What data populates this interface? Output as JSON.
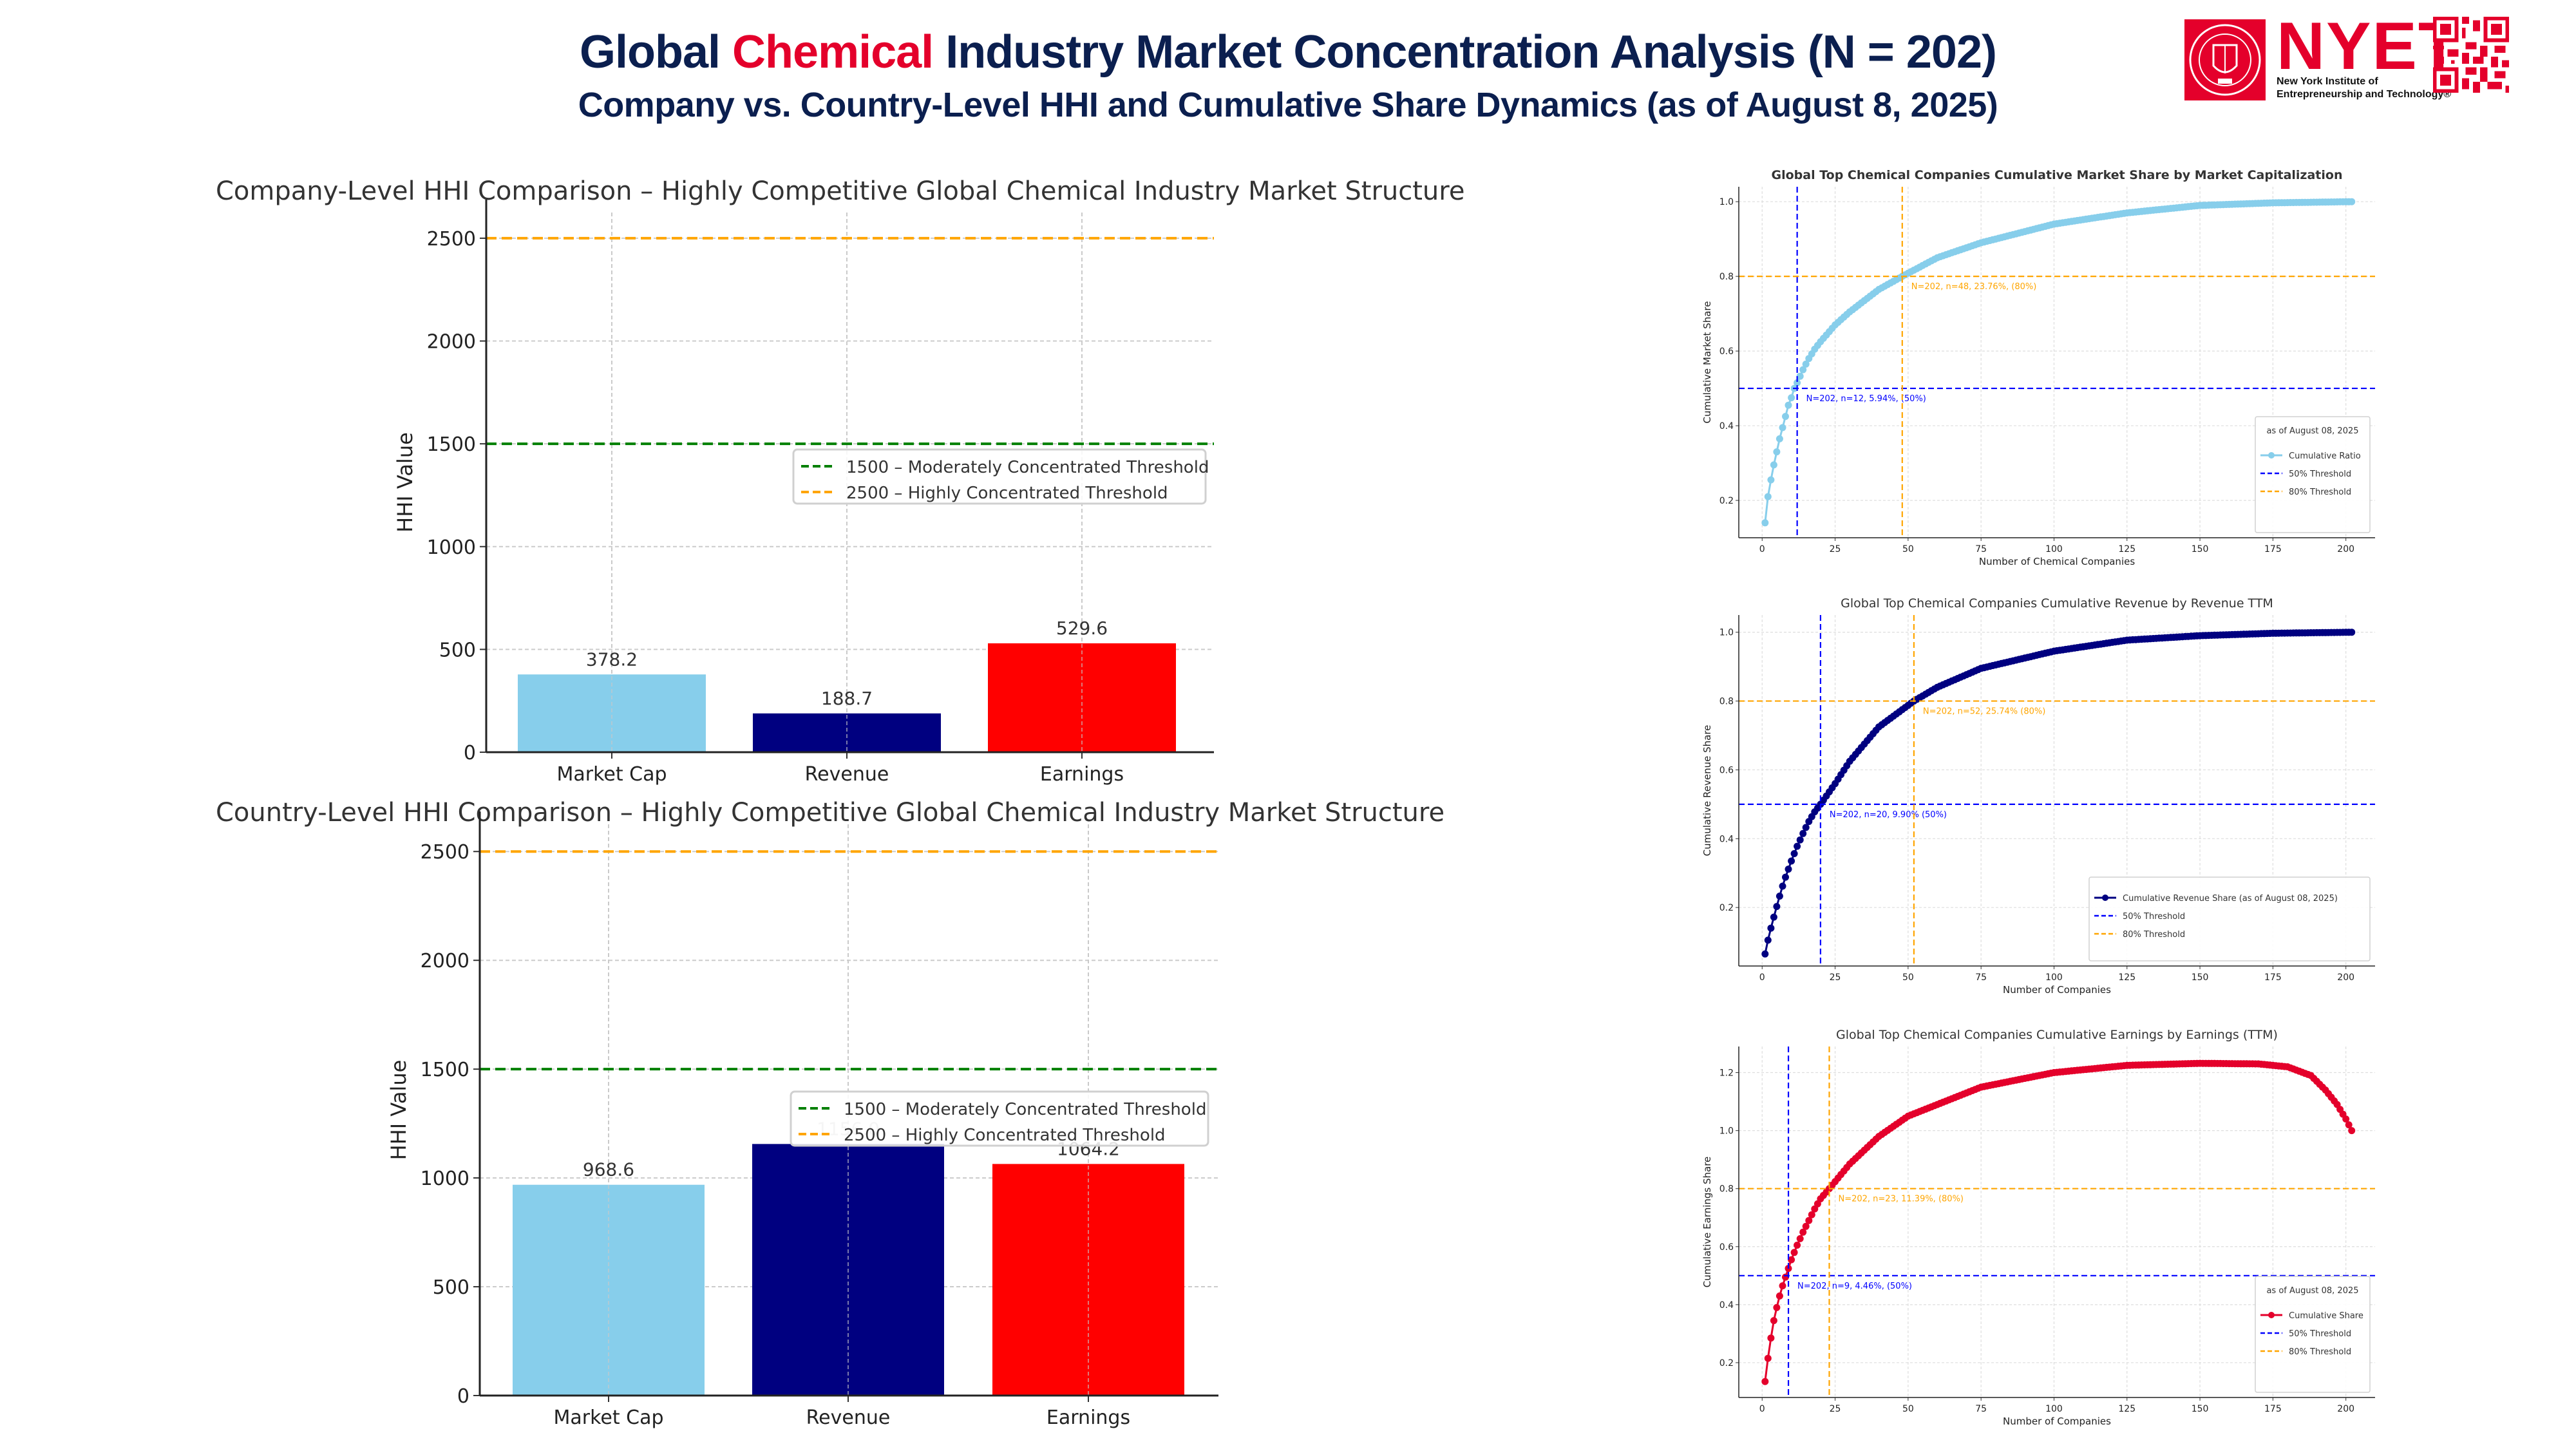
{
  "header": {
    "title_pre": "Global ",
    "title_accent": "Chemical",
    "title_post": " Industry Market Concentration Analysis (N = 202)",
    "subtitle": "Company vs. Country-Level HHI and Cumulative Share Dynamics (as of August 8, 2025)",
    "logo_text": "NYET",
    "logo_sub_line1": "New York Institute of",
    "logo_sub_line2": "Entrepreneurship and Technology®",
    "logo_icon": "university-seal-icon",
    "qr_icon": "qr-code-icon"
  },
  "colors": {
    "accent": "#e4002b",
    "navy_text": "#0b1f4f",
    "market_cap": "#87ceeb",
    "revenue": "#000080",
    "earnings": "#ff0000",
    "earnings_line": "#e4002b",
    "threshold_50": "#0000ff",
    "threshold_80": "#ffa500",
    "moderate": "#008000"
  },
  "chart_data": [
    {
      "id": "company_hhi",
      "type": "bar",
      "title": "Company-Level HHI Comparison – Highly Competitive Global Chemical Industry Market Structure",
      "xlabel": "",
      "ylabel": "HHI Value",
      "categories": [
        "Market Cap",
        "Revenue",
        "Earnings"
      ],
      "values": [
        378.2,
        188.7,
        529.6
      ],
      "value_labels": [
        "378.2",
        "188.7",
        "529.6"
      ],
      "ylim": [
        0,
        2625
      ],
      "yticks": [
        0,
        500,
        1000,
        1500,
        2000,
        2500
      ],
      "grid": true,
      "reference_lines": [
        {
          "y": 1500,
          "label": "1500 – Moderately Concentrated Threshold",
          "color": "#008000"
        },
        {
          "y": 2500,
          "label": "2500 – Highly Concentrated Threshold",
          "color": "#ffa500"
        }
      ],
      "legend": "center-right"
    },
    {
      "id": "country_hhi",
      "type": "bar",
      "title": "Country-Level HHI Comparison – Highly Competitive Global Chemical Industry Market Structure",
      "xlabel": "",
      "ylabel": "HHI Value",
      "categories": [
        "Market Cap",
        "Revenue",
        "Earnings"
      ],
      "values": [
        968.6,
        1156.0,
        1064.2
      ],
      "value_labels": [
        "968.6",
        "1156.0",
        "1064.2"
      ],
      "ylim": [
        0,
        2625
      ],
      "yticks": [
        0,
        500,
        1000,
        1500,
        2000,
        2500
      ],
      "grid": true,
      "reference_lines": [
        {
          "y": 1500,
          "label": "1500 – Moderately Concentrated Threshold",
          "color": "#008000"
        },
        {
          "y": 2500,
          "label": "2500 – Highly Concentrated Threshold",
          "color": "#ffa500"
        }
      ],
      "legend": "center-right"
    },
    {
      "id": "cum_marketcap",
      "type": "line",
      "title": "Global Top Chemical Companies Cumulative Market Share by Market Capitalization",
      "xlabel": "Number of Chemical Companies",
      "ylabel": "Cumulative Market Share",
      "n_points": 202,
      "xlim": [
        -8,
        210
      ],
      "ylim": [
        0.1,
        1.04
      ],
      "xticks": [
        0,
        25,
        50,
        75,
        100,
        125,
        150,
        175,
        200
      ],
      "yticks": [
        0.2,
        0.4,
        0.6,
        0.8,
        1.0
      ],
      "anchor_points": [
        [
          1,
          0.14
        ],
        [
          2,
          0.21
        ],
        [
          3,
          0.255
        ],
        [
          4,
          0.295
        ],
        [
          5,
          0.33
        ],
        [
          6,
          0.365
        ],
        [
          7,
          0.395
        ],
        [
          8,
          0.425
        ],
        [
          9,
          0.455
        ],
        [
          10,
          0.475
        ],
        [
          11,
          0.5
        ],
        [
          12,
          0.515
        ],
        [
          14,
          0.55
        ],
        [
          16,
          0.58
        ],
        [
          18,
          0.605
        ],
        [
          20,
          0.625
        ],
        [
          25,
          0.67
        ],
        [
          30,
          0.705
        ],
        [
          40,
          0.765
        ],
        [
          48,
          0.8
        ],
        [
          60,
          0.85
        ],
        [
          75,
          0.89
        ],
        [
          100,
          0.94
        ],
        [
          125,
          0.97
        ],
        [
          150,
          0.99
        ],
        [
          175,
          0.997
        ],
        [
          202,
          1.0
        ]
      ],
      "series_label": "Cumulative Ratio",
      "legend_title": "as of August 08, 2025",
      "legend": "lower-right",
      "thresholds": [
        {
          "label": "50% Threshold",
          "y": 0.5,
          "x": 12,
          "color": "#0000ff",
          "annotation": "N=202, n=12, 5.94%, (50%)"
        },
        {
          "label": "80% Threshold",
          "y": 0.8,
          "x": 48,
          "color": "#ffa500",
          "annotation": "N=202, n=48, 23.76%, (80%)"
        }
      ],
      "title_bold": true
    },
    {
      "id": "cum_revenue",
      "type": "line",
      "title": "Global Top Chemical Companies Cumulative Revenue by Revenue TTM",
      "xlabel": "Number of Companies",
      "ylabel": "Cumulative Revenue Share",
      "n_points": 202,
      "xlim": [
        -8,
        210
      ],
      "ylim": [
        0.03,
        1.05
      ],
      "xticks": [
        0,
        25,
        50,
        75,
        100,
        125,
        150,
        175,
        200
      ],
      "yticks": [
        0.2,
        0.4,
        0.6,
        0.8,
        1.0
      ],
      "anchor_points": [
        [
          1,
          0.065
        ],
        [
          2,
          0.105
        ],
        [
          3,
          0.14
        ],
        [
          4,
          0.172
        ],
        [
          5,
          0.203
        ],
        [
          6,
          0.233
        ],
        [
          7,
          0.262
        ],
        [
          8,
          0.288
        ],
        [
          10,
          0.335
        ],
        [
          12,
          0.378
        ],
        [
          14,
          0.415
        ],
        [
          16,
          0.45
        ],
        [
          18,
          0.478
        ],
        [
          20,
          0.5
        ],
        [
          25,
          0.56
        ],
        [
          30,
          0.625
        ],
        [
          40,
          0.725
        ],
        [
          52,
          0.8
        ],
        [
          60,
          0.84
        ],
        [
          75,
          0.895
        ],
        [
          100,
          0.945
        ],
        [
          125,
          0.977
        ],
        [
          150,
          0.99
        ],
        [
          175,
          0.997
        ],
        [
          202,
          1.0
        ]
      ],
      "series_label": "Cumulative Revenue Share (as of August 08, 2025)",
      "legend_title": "",
      "legend": "lower-right",
      "thresholds": [
        {
          "label": "50% Threshold",
          "y": 0.5,
          "x": 20,
          "color": "#0000ff",
          "annotation": "N=202, n=20, 9.90% (50%)"
        },
        {
          "label": "80% Threshold",
          "y": 0.8,
          "x": 52,
          "color": "#ffa500",
          "annotation": "N=202, n=52, 25.74% (80%)"
        }
      ],
      "title_bold": false
    },
    {
      "id": "cum_earnings",
      "type": "line",
      "title": "Global Top Chemical Companies Cumulative Earnings by Earnings (TTM)",
      "xlabel": "Number of Companies",
      "ylabel": "Cumulative Earnings Share",
      "n_points": 202,
      "xlim": [
        -8,
        210
      ],
      "ylim": [
        0.08,
        1.29
      ],
      "xticks": [
        0,
        25,
        50,
        75,
        100,
        125,
        150,
        175,
        200
      ],
      "yticks": [
        0.2,
        0.4,
        0.6,
        0.8,
        1.0,
        1.2
      ],
      "anchor_points": [
        [
          1,
          0.135
        ],
        [
          2,
          0.215
        ],
        [
          3,
          0.285
        ],
        [
          4,
          0.345
        ],
        [
          5,
          0.39
        ],
        [
          6,
          0.43
        ],
        [
          7,
          0.465
        ],
        [
          8,
          0.495
        ],
        [
          9,
          0.525
        ],
        [
          10,
          0.555
        ],
        [
          12,
          0.605
        ],
        [
          14,
          0.65
        ],
        [
          16,
          0.69
        ],
        [
          18,
          0.73
        ],
        [
          20,
          0.765
        ],
        [
          23,
          0.8
        ],
        [
          30,
          0.885
        ],
        [
          40,
          0.98
        ],
        [
          50,
          1.05
        ],
        [
          75,
          1.15
        ],
        [
          100,
          1.2
        ],
        [
          125,
          1.225
        ],
        [
          150,
          1.232
        ],
        [
          170,
          1.23
        ],
        [
          180,
          1.22
        ],
        [
          188,
          1.19
        ],
        [
          193,
          1.14
        ],
        [
          197,
          1.09
        ],
        [
          200,
          1.04
        ],
        [
          202,
          1.0
        ]
      ],
      "series_label": "Cumulative Share",
      "legend_title": "as of August 08, 2025",
      "legend": "lower-right",
      "thresholds": [
        {
          "label": "50% Threshold",
          "y": 0.5,
          "x": 9,
          "color": "#0000ff",
          "annotation": "N=202, n=9, 4.46%, (50%)"
        },
        {
          "label": "80% Threshold",
          "y": 0.8,
          "x": 23,
          "color": "#ffa500",
          "annotation": "N=202, n=23, 11.39%, (80%)"
        }
      ],
      "title_bold": false
    }
  ]
}
